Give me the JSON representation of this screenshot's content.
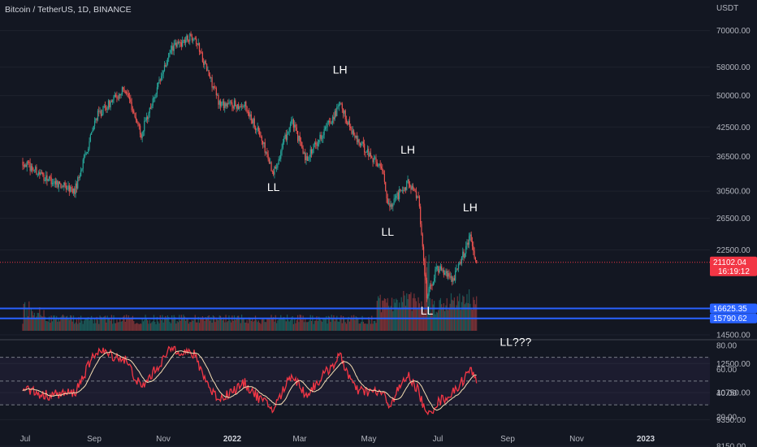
{
  "header": {
    "symbol_title": "Bitcoin / TetherUS, 1D, BINANCE"
  },
  "axis": {
    "currency": "USDT"
  },
  "colors": {
    "background": "#131722",
    "up": "#26a69a",
    "down": "#ef5350",
    "level_line": "#2962ff",
    "rsi": "#f23645",
    "rsi_ma": "#f5deb3",
    "last_price": "#f23645"
  },
  "chart_data": {
    "type": "candlestick",
    "y_scale": "log",
    "price_ticks": [
      "70000.00",
      "58000.00",
      "50000.00",
      "42500.00",
      "36500.00",
      "30500.00",
      "26500.00",
      "22500.00",
      "14500.00",
      "12500.00",
      "10750.00",
      "9350.00",
      "8150.00"
    ],
    "x_ticks": [
      {
        "label": "Jul",
        "bold": false
      },
      {
        "label": "Sep",
        "bold": false
      },
      {
        "label": "Nov",
        "bold": false
      },
      {
        "label": "2022",
        "bold": true
      },
      {
        "label": "Mar",
        "bold": false
      },
      {
        "label": "May",
        "bold": false
      },
      {
        "label": "Jul",
        "bold": false
      },
      {
        "label": "Sep",
        "bold": false
      },
      {
        "label": "Nov",
        "bold": false
      },
      {
        "label": "2023",
        "bold": true
      }
    ],
    "price_path": [
      [
        "2021-06-01",
        35500
      ],
      [
        "2021-06-20",
        33000
      ],
      [
        "2021-07-20",
        30500
      ],
      [
        "2021-08-10",
        45000
      ],
      [
        "2021-09-06",
        52000
      ],
      [
        "2021-09-21",
        41000
      ],
      [
        "2021-10-10",
        55000
      ],
      [
        "2021-10-20",
        64000
      ],
      [
        "2021-11-10",
        68500
      ],
      [
        "2021-11-26",
        54000
      ],
      [
        "2021-12-04",
        48000
      ],
      [
        "2021-12-28",
        47500
      ],
      [
        "2022-01-10",
        41500
      ],
      [
        "2022-01-24",
        33500
      ],
      [
        "2022-02-10",
        44000
      ],
      [
        "2022-02-24",
        36000
      ],
      [
        "2022-03-28",
        47500
      ],
      [
        "2022-04-12",
        40000
      ],
      [
        "2022-05-08",
        34000
      ],
      [
        "2022-05-12",
        28000
      ],
      [
        "2022-05-31",
        31800
      ],
      [
        "2022-06-10",
        29500
      ],
      [
        "2022-06-18",
        17700
      ],
      [
        "2022-06-28",
        20500
      ],
      [
        "2022-07-13",
        19300
      ],
      [
        "2022-07-29",
        24000
      ],
      [
        "2022-08-04",
        21102
      ]
    ],
    "last_price": {
      "value": "21102.04",
      "countdown": "16:19:12"
    },
    "horizontal_levels": [
      {
        "value": 16625.35,
        "label": "16625.35"
      },
      {
        "value": 15790.62,
        "label": "15790.62"
      }
    ],
    "annotations": [
      {
        "text": "LL",
        "date": "2022-01-24",
        "anchor_price": 30500
      },
      {
        "text": "LH",
        "date": "2022-03-28",
        "anchor_price": 56000
      },
      {
        "text": "LL",
        "date": "2022-05-12",
        "anchor_price": 24200
      },
      {
        "text": "LH",
        "date": "2022-05-31",
        "anchor_price": 37000
      },
      {
        "text": "LH",
        "date": "2022-07-29",
        "anchor_price": 27500
      },
      {
        "text": "LL",
        "date": "2022-06-18",
        "anchor_price": 16100
      },
      {
        "text": "LL???",
        "date": "2022-09-10",
        "anchor_price": 13700
      }
    ],
    "rsi": {
      "ticks": [
        "80.00",
        "60.00",
        "40.00",
        "20.00"
      ],
      "upper_band": 70,
      "middle": 50,
      "lower_band": 30,
      "path": [
        [
          "2021-06-01",
          45
        ],
        [
          "2021-06-20",
          38
        ],
        [
          "2021-07-20",
          40
        ],
        [
          "2021-08-10",
          76
        ],
        [
          "2021-09-06",
          68
        ],
        [
          "2021-09-21",
          44
        ],
        [
          "2021-10-10",
          66
        ],
        [
          "2021-10-20",
          78
        ],
        [
          "2021-11-10",
          72
        ],
        [
          "2021-11-26",
          42
        ],
        [
          "2021-12-04",
          35
        ],
        [
          "2021-12-28",
          48
        ],
        [
          "2022-01-10",
          36
        ],
        [
          "2022-01-24",
          26
        ],
        [
          "2022-02-10",
          56
        ],
        [
          "2022-02-24",
          38
        ],
        [
          "2022-03-28",
          71
        ],
        [
          "2022-04-12",
          42
        ],
        [
          "2022-05-08",
          40
        ],
        [
          "2022-05-12",
          28
        ],
        [
          "2022-05-31",
          55
        ],
        [
          "2022-06-10",
          42
        ],
        [
          "2022-06-18",
          20
        ],
        [
          "2022-06-28",
          32
        ],
        [
          "2022-07-13",
          40
        ],
        [
          "2022-07-29",
          59
        ],
        [
          "2022-08-04",
          52
        ]
      ]
    }
  }
}
